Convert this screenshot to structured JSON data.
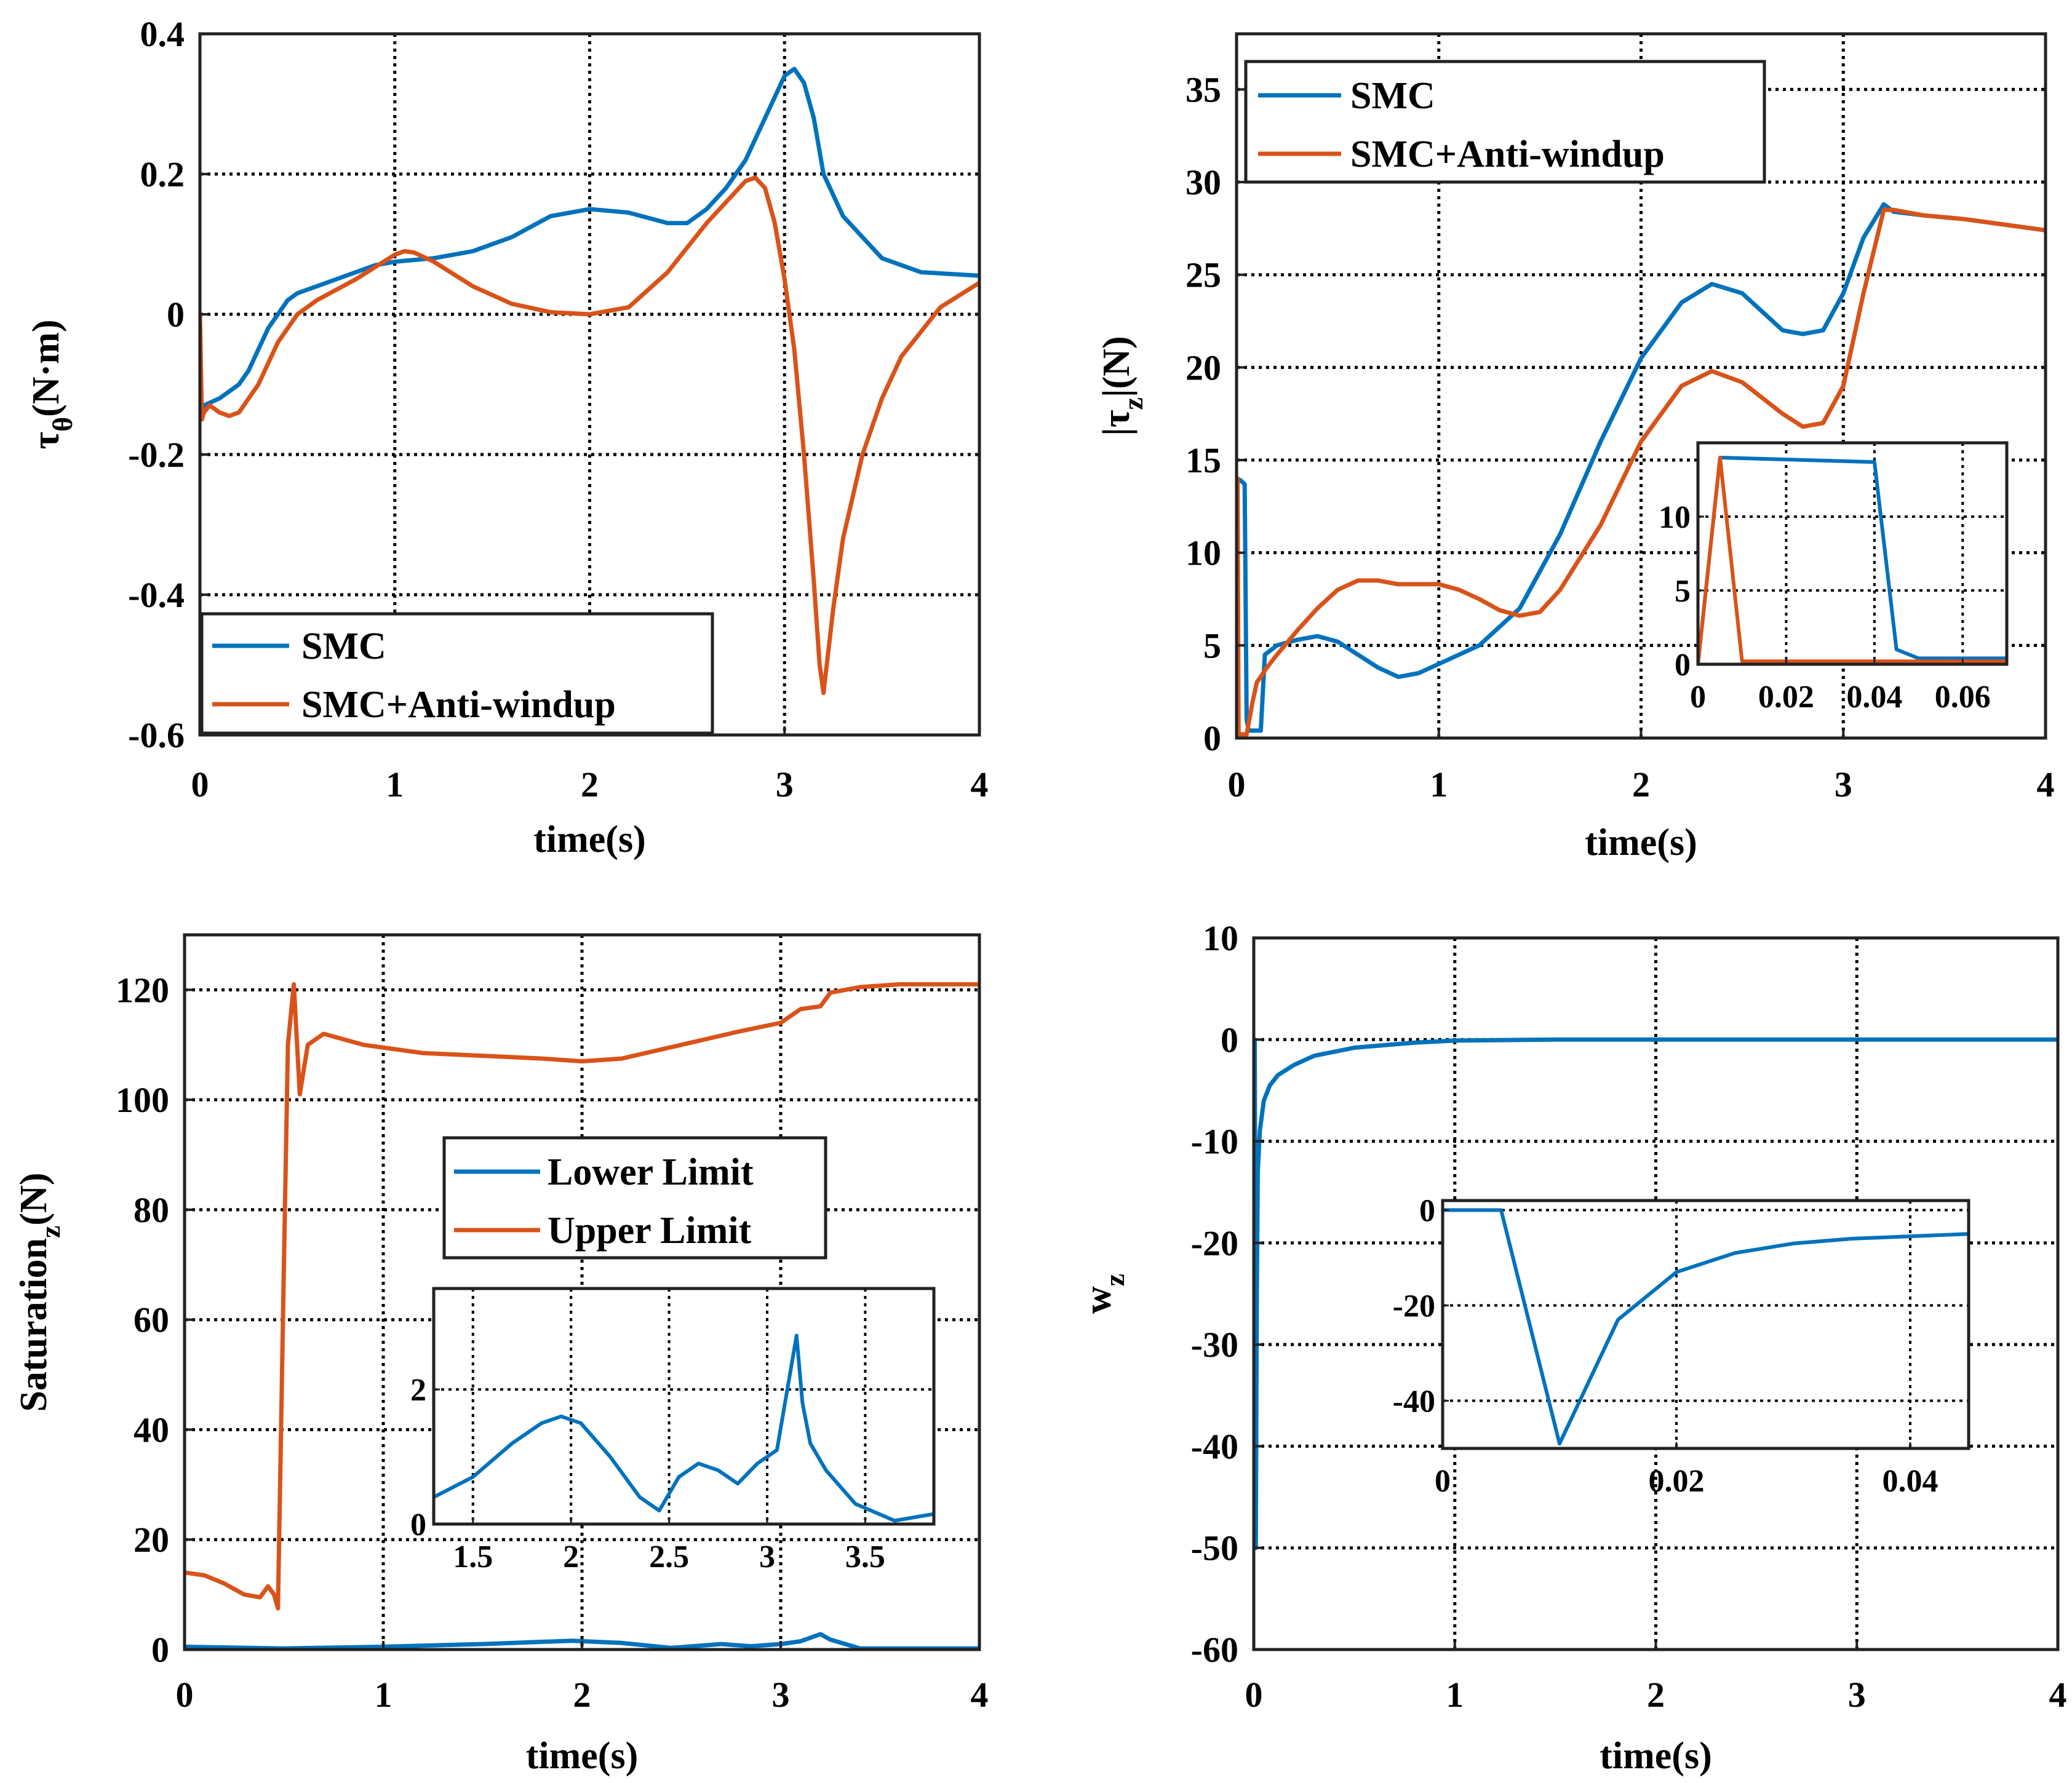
{
  "colors": {
    "smc": "#0072BD",
    "anti": "#D95319",
    "grid": "#000000"
  },
  "chart_data": [
    {
      "id": "tau-theta",
      "type": "line",
      "xlabel": "time(s)",
      "ylabel": "τθ(N·m)",
      "ylabel_main": "τ",
      "ylabel_sub": "θ",
      "ylabel_tail": "(N·m)",
      "xlim": [
        0,
        4
      ],
      "ylim": [
        -0.6,
        0.4
      ],
      "xticks": [
        0,
        1,
        2,
        3,
        4
      ],
      "yticks": [
        -0.6,
        -0.4,
        -0.2,
        0,
        0.2,
        0.4
      ],
      "ytick_labels": [
        "-0.6",
        "-0.4",
        "-0.2",
        "0",
        "0.2",
        "0.4"
      ],
      "grid": true,
      "legend": {
        "position": "bottom-left",
        "entries": [
          "SMC",
          "SMC+Anti-windup"
        ]
      },
      "series": [
        {
          "name": "SMC",
          "color_key": "smc",
          "x": [
            0,
            0.02,
            0.1,
            0.2,
            0.25,
            0.3,
            0.35,
            0.4,
            0.45,
            0.5,
            0.6,
            0.7,
            0.8,
            0.9,
            1.0,
            1.2,
            1.4,
            1.6,
            1.8,
            2.0,
            2.2,
            2.4,
            2.5,
            2.6,
            2.7,
            2.8,
            2.9,
            3.0,
            3.05,
            3.1,
            3.15,
            3.2,
            3.3,
            3.5,
            3.7,
            4.0
          ],
          "y": [
            -0.14,
            -0.13,
            -0.12,
            -0.1,
            -0.08,
            -0.05,
            -0.02,
            0.0,
            0.02,
            0.03,
            0.04,
            0.05,
            0.06,
            0.07,
            0.075,
            0.08,
            0.09,
            0.11,
            0.14,
            0.15,
            0.145,
            0.13,
            0.13,
            0.15,
            0.18,
            0.22,
            0.28,
            0.34,
            0.35,
            0.33,
            0.28,
            0.2,
            0.14,
            0.08,
            0.06,
            0.055
          ]
        },
        {
          "name": "SMC+Anti-windup",
          "color_key": "anti",
          "x": [
            0,
            0.01,
            0.02,
            0.05,
            0.1,
            0.15,
            0.2,
            0.3,
            0.4,
            0.5,
            0.6,
            0.8,
            1.0,
            1.05,
            1.1,
            1.2,
            1.4,
            1.6,
            1.8,
            2.0,
            2.2,
            2.4,
            2.6,
            2.8,
            2.85,
            2.9,
            2.95,
            3.0,
            3.05,
            3.1,
            3.15,
            3.18,
            3.2,
            3.25,
            3.3,
            3.4,
            3.5,
            3.6,
            3.8,
            4.0
          ],
          "y": [
            0.0,
            -0.15,
            -0.14,
            -0.13,
            -0.14,
            -0.145,
            -0.14,
            -0.1,
            -0.04,
            0.0,
            0.02,
            0.05,
            0.085,
            0.09,
            0.088,
            0.075,
            0.04,
            0.015,
            0.003,
            0.0,
            0.01,
            0.06,
            0.13,
            0.19,
            0.195,
            0.18,
            0.13,
            0.05,
            -0.05,
            -0.2,
            -0.38,
            -0.5,
            -0.54,
            -0.42,
            -0.32,
            -0.2,
            -0.12,
            -0.06,
            0.01,
            0.045
          ]
        }
      ],
      "inset": null
    },
    {
      "id": "tau-z",
      "type": "line",
      "xlabel": "time(s)",
      "ylabel": "|τz|(N)",
      "ylabel_main": "|τ",
      "ylabel_sub": "z",
      "ylabel_tail": "|(N)",
      "xlim": [
        0,
        4
      ],
      "ylim": [
        0,
        38
      ],
      "xticks": [
        0,
        1,
        2,
        3,
        4
      ],
      "yticks": [
        0,
        5,
        10,
        15,
        20,
        25,
        30,
        35
      ],
      "ytick_labels": [
        "0",
        "5",
        "10",
        "15",
        "20",
        "25",
        "30",
        "35"
      ],
      "grid": true,
      "legend": {
        "position": "top-left",
        "entries": [
          "SMC",
          "SMC+Anti-windup"
        ]
      },
      "series": [
        {
          "name": "SMC",
          "color_key": "smc",
          "x": [
            0,
            0.005,
            0.02,
            0.04,
            0.05,
            0.06,
            0.1,
            0.12,
            0.14,
            0.2,
            0.3,
            0.4,
            0.5,
            0.6,
            0.7,
            0.8,
            0.9,
            1.0,
            1.2,
            1.4,
            1.6,
            1.8,
            2.0,
            2.2,
            2.35,
            2.5,
            2.7,
            2.8,
            2.9,
            3.0,
            3.1,
            3.2,
            3.25,
            3.4,
            3.6,
            3.8,
            4.0
          ],
          "y": [
            0,
            14,
            13.9,
            13.7,
            1,
            0.4,
            0.4,
            0.4,
            4.5,
            5,
            5.3,
            5.5,
            5.2,
            4.5,
            3.8,
            3.3,
            3.5,
            4,
            5,
            7,
            11,
            16,
            20.5,
            23.5,
            24.5,
            24,
            22,
            21.8,
            22,
            24,
            27,
            28.8,
            28.4,
            28.2,
            28,
            27.7,
            27.4
          ]
        },
        {
          "name": "SMC+Anti-windup",
          "color_key": "anti",
          "x": [
            0,
            0.005,
            0.01,
            0.05,
            0.08,
            0.1,
            0.15,
            0.2,
            0.3,
            0.4,
            0.5,
            0.6,
            0.7,
            0.8,
            0.9,
            1.0,
            1.1,
            1.2,
            1.3,
            1.4,
            1.5,
            1.6,
            1.8,
            2.0,
            2.2,
            2.35,
            2.5,
            2.7,
            2.8,
            2.9,
            3.0,
            3.1,
            3.2,
            3.25,
            3.4,
            3.6,
            3.8,
            4.0
          ],
          "y": [
            0,
            14,
            0.2,
            0.2,
            2,
            3,
            3.8,
            4.5,
            5.8,
            7,
            8,
            8.5,
            8.5,
            8.3,
            8.3,
            8.3,
            8,
            7.5,
            6.9,
            6.6,
            6.8,
            8,
            11.5,
            16,
            19,
            19.8,
            19.2,
            17.5,
            16.8,
            17,
            19,
            24,
            28.5,
            28.5,
            28.2,
            28,
            27.7,
            27.4
          ]
        }
      ],
      "inset": {
        "xlim": [
          0,
          0.07
        ],
        "ylim": [
          0,
          15
        ],
        "xticks": [
          0,
          0.02,
          0.04,
          0.06
        ],
        "xtick_labels": [
          "0",
          "0.02",
          "0.04",
          "0.06"
        ],
        "yticks": [
          0,
          5,
          10
        ],
        "ytick_labels": [
          "0",
          "5",
          "10"
        ],
        "series": [
          {
            "name": "SMC",
            "color_key": "smc",
            "x": [
              0,
              0.005,
              0.04,
              0.045,
              0.05,
              0.07
            ],
            "y": [
              0,
              14,
              13.7,
              1,
              0.4,
              0.4
            ]
          },
          {
            "name": "SMC+Anti-windup",
            "color_key": "anti",
            "x": [
              0,
              0.005,
              0.01,
              0.07
            ],
            "y": [
              0,
              14,
              0.2,
              0.2
            ]
          }
        ]
      }
    },
    {
      "id": "saturation-z",
      "type": "line",
      "xlabel": "time(s)",
      "ylabel": "Saturationz(N)",
      "ylabel_main": "Saturation",
      "ylabel_sub": "z",
      "ylabel_tail": "(N)",
      "xlim": [
        0,
        4
      ],
      "ylim": [
        0,
        130
      ],
      "xticks": [
        0,
        1,
        2,
        3,
        4
      ],
      "yticks": [
        0,
        20,
        40,
        60,
        80,
        100,
        120
      ],
      "ytick_labels": [
        "0",
        "20",
        "40",
        "60",
        "80",
        "100",
        "120"
      ],
      "grid": true,
      "legend": {
        "position": "center",
        "entries": [
          "Lower Limit",
          "Upper Limit"
        ]
      },
      "series": [
        {
          "name": "Lower Limit",
          "color_key": "smc",
          "x": [
            0,
            0.5,
            1.0,
            1.5,
            1.95,
            2.2,
            2.45,
            2.7,
            2.85,
            3.0,
            3.1,
            3.2,
            3.25,
            3.4,
            4.0
          ],
          "y": [
            0.5,
            0.2,
            0.5,
            1,
            1.6,
            1.2,
            0.3,
            1,
            0.6,
            1,
            1.5,
            2.8,
            1.8,
            0.2,
            0.2
          ]
        },
        {
          "name": "Upper Limit",
          "color_key": "anti",
          "x": [
            0,
            0.1,
            0.2,
            0.3,
            0.38,
            0.42,
            0.45,
            0.47,
            0.5,
            0.52,
            0.55,
            0.58,
            0.62,
            0.7,
            0.9,
            1.2,
            1.5,
            1.8,
            2.0,
            2.2,
            2.5,
            2.8,
            3.0,
            3.1,
            3.2,
            3.25,
            3.4,
            3.6,
            4.0
          ],
          "y": [
            14,
            13.5,
            12,
            10,
            9.5,
            11.5,
            10,
            7.5,
            70,
            110,
            121,
            101,
            110,
            112,
            110,
            108.5,
            108,
            107.5,
            107,
            107.5,
            110,
            112.5,
            114,
            116.5,
            117,
            119.5,
            120.5,
            121,
            121
          ]
        }
      ],
      "inset": {
        "xlim": [
          1.3,
          3.85
        ],
        "ylim": [
          0,
          3.5
        ],
        "xticks": [
          1.5,
          2,
          2.5,
          3,
          3.5
        ],
        "xtick_labels": [
          "1.5",
          "2",
          "2.5",
          "3",
          "3.5"
        ],
        "yticks": [
          0,
          2
        ],
        "ytick_labels": [
          "0",
          "2"
        ],
        "series": [
          {
            "name": "Lower Limit",
            "color_key": "smc",
            "x": [
              1.3,
              1.5,
              1.7,
              1.85,
              1.95,
              2.05,
              2.2,
              2.35,
              2.45,
              2.55,
              2.65,
              2.75,
              2.85,
              2.95,
              3.05,
              3.15,
              3.18,
              3.22,
              3.3,
              3.45,
              3.65,
              3.85
            ],
            "y": [
              0.4,
              0.7,
              1.2,
              1.5,
              1.6,
              1.5,
              1.0,
              0.4,
              0.2,
              0.7,
              0.9,
              0.8,
              0.6,
              0.9,
              1.1,
              2.8,
              1.8,
              1.2,
              0.8,
              0.3,
              0.05,
              0.15
            ]
          }
        ]
      }
    },
    {
      "id": "w-z",
      "type": "line",
      "xlabel": "time(s)",
      "ylabel": "wz",
      "ylabel_main": "w",
      "ylabel_sub": "z",
      "ylabel_tail": "",
      "xlim": [
        0,
        4
      ],
      "ylim": [
        -60,
        10
      ],
      "xticks": [
        0,
        1,
        2,
        3,
        4
      ],
      "yticks": [
        -60,
        -50,
        -40,
        -30,
        -20,
        -10,
        0,
        10
      ],
      "ytick_labels": [
        "-60",
        "-50",
        "-40",
        "-30",
        "-20",
        "-10",
        "0",
        "10"
      ],
      "grid": true,
      "legend": null,
      "series": [
        {
          "name": "wz",
          "color_key": "smc",
          "x": [
            0,
            0.005,
            0.01,
            0.015,
            0.02,
            0.03,
            0.05,
            0.08,
            0.12,
            0.2,
            0.3,
            0.5,
            0.8,
            1.0,
            1.5,
            2.0,
            3.0,
            4.0
          ],
          "y": [
            0,
            0,
            -50,
            -25,
            -13,
            -9,
            -6,
            -4.5,
            -3.5,
            -2.5,
            -1.6,
            -0.8,
            -0.3,
            -0.1,
            0,
            0,
            0,
            0
          ]
        }
      ],
      "inset": {
        "xlim": [
          0,
          0.045
        ],
        "ylim": [
          -50,
          2
        ],
        "xticks": [
          0,
          0.02,
          0.04
        ],
        "xtick_labels": [
          "0",
          "0.02",
          "0.04"
        ],
        "yticks": [
          -40,
          -20,
          0
        ],
        "ytick_labels": [
          "-40",
          "-20",
          "0"
        ],
        "series": [
          {
            "name": "wz",
            "color_key": "smc",
            "x": [
              0,
              0.005,
              0.01,
              0.015,
              0.02,
              0.025,
              0.03,
              0.035,
              0.04,
              0.045
            ],
            "y": [
              0,
              0,
              -49,
              -23,
              -13,
              -9,
              -7,
              -6,
              -5.5,
              -5
            ]
          }
        ]
      }
    }
  ]
}
